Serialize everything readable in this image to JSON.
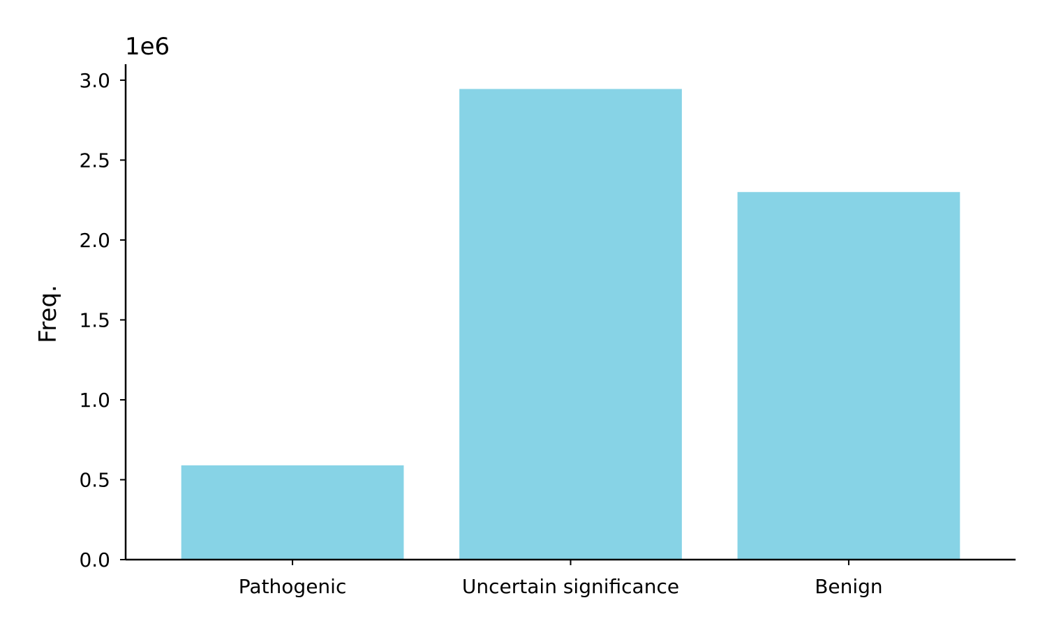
{
  "chart_data": {
    "type": "bar",
    "categories": [
      "Pathogenic",
      "Uncertain significance",
      "Benign"
    ],
    "values": [
      590000,
      2945000,
      2300000
    ],
    "title": "",
    "xlabel": "",
    "ylabel": "Freq.",
    "y_offset_label": "1e6",
    "y_scale": 1000000,
    "ylim": [
      0,
      3100000
    ],
    "yticks": [
      0,
      500000,
      1000000,
      1500000,
      2000000,
      2500000,
      3000000
    ],
    "ytick_labels": [
      "0.0",
      "0.5",
      "1.0",
      "1.5",
      "2.0",
      "2.5",
      "3.0"
    ],
    "bar_color": "#87d3e6",
    "grid": false,
    "legend": "none"
  }
}
